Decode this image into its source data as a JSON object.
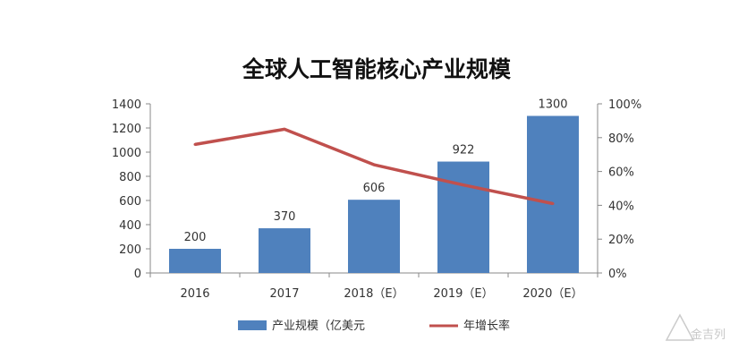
{
  "chart_data": {
    "type": "bar",
    "title": "全球人工智能核心产业规模",
    "categories": [
      "2016",
      "2017",
      "2018（E）",
      "2019（E）",
      "2020（E）"
    ],
    "series": [
      {
        "name": "产业规模（亿美元",
        "type": "bar",
        "axis": "left",
        "color": "#4f81bd",
        "values": [
          200,
          370,
          606,
          922,
          1300
        ]
      },
      {
        "name": "年增长率",
        "type": "line",
        "axis": "right",
        "color": "#c0504d",
        "values": [
          76,
          85,
          64,
          52,
          41
        ]
      }
    ],
    "y_left": {
      "min": 0,
      "max": 1400,
      "ticks": [
        "0",
        "200",
        "400",
        "600",
        "800",
        "1000",
        "1200",
        "1400"
      ]
    },
    "y_right": {
      "min": 0,
      "max": 100,
      "ticks": [
        "0%",
        "20%",
        "40%",
        "60%",
        "80%",
        "100%"
      ]
    },
    "legend_position": "bottom",
    "grid": false
  },
  "watermark": {
    "text": "金吉列"
  }
}
